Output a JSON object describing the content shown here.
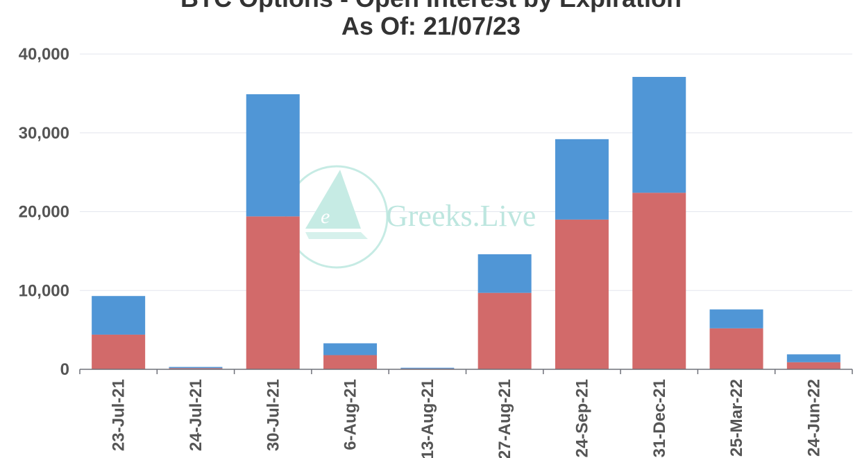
{
  "chart_data": {
    "type": "bar",
    "stacked": true,
    "title": "BTC Options - Open Interest by Expiration",
    "subtitle": "As Of: 21/07/23",
    "categories": [
      "23-Jul-21",
      "24-Jul-21",
      "30-Jul-21",
      "6-Aug-21",
      "13-Aug-21",
      "27-Aug-21",
      "24-Sep-21",
      "31-Dec-21",
      "25-Mar-22",
      "24-Jun-22"
    ],
    "series": [
      {
        "values": [
          4400,
          150,
          19400,
          1800,
          100,
          9700,
          19000,
          22400,
          5200,
          900
        ],
        "color": "#d26a6a"
      },
      {
        "values": [
          4900,
          150,
          15500,
          1500,
          100,
          4900,
          10200,
          14700,
          2400,
          1000
        ],
        "color": "#5096d6"
      }
    ],
    "ylim": [
      0,
      40000
    ],
    "yticks": [
      0,
      10000,
      20000,
      30000,
      40000
    ],
    "ytick_labels": [
      "0",
      "10,000",
      "20,000",
      "30,000",
      "40,000"
    ],
    "grid": true,
    "legend": "none",
    "watermark": "Greeks.Live"
  }
}
